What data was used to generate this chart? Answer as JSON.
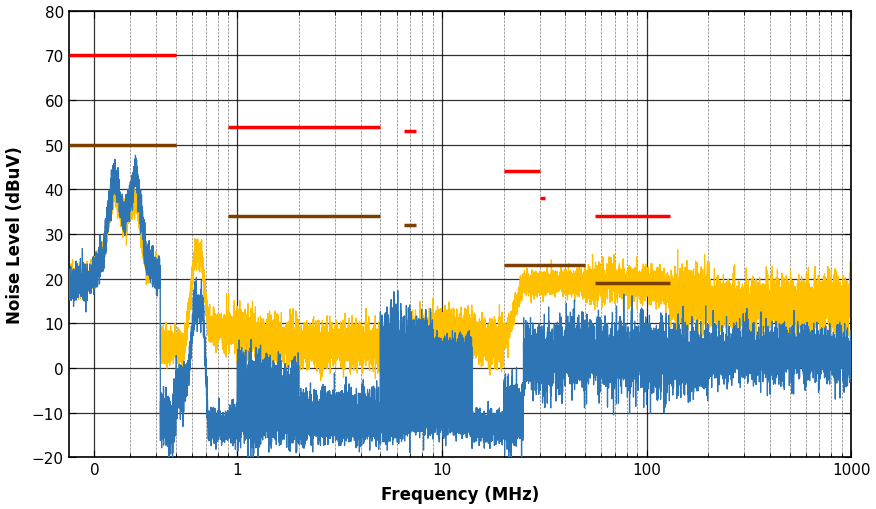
{
  "xlabel": "Frequency (MHz)",
  "ylabel": "Noise Level (dBuV)",
  "xlim": [
    0.15,
    1000
  ],
  "ylim": [
    -20,
    80
  ],
  "yticks": [
    -20,
    -10,
    0,
    10,
    20,
    30,
    40,
    50,
    60,
    70,
    80
  ],
  "blue_color": "#2E75B6",
  "yellow_color": "#FFC000",
  "red_color": "#FF0000",
  "brown_color": "#7B3F00",
  "background_color": "#FFFFFF",
  "limit_lines_red": [
    {
      "x_start": 0.15,
      "x_end": 0.5,
      "y": 70
    },
    {
      "x_start": 0.9,
      "x_end": 5.0,
      "y": 54
    },
    {
      "x_start": 6.5,
      "x_end": 7.5,
      "y": 53
    },
    {
      "x_start": 20,
      "x_end": 30,
      "y": 44
    },
    {
      "x_start": 30,
      "x_end": 32,
      "y": 38
    },
    {
      "x_start": 56,
      "x_end": 130,
      "y": 34
    }
  ],
  "limit_lines_brown": [
    {
      "x_start": 0.15,
      "x_end": 0.5,
      "y": 50
    },
    {
      "x_start": 0.9,
      "x_end": 5.0,
      "y": 34
    },
    {
      "x_start": 6.5,
      "x_end": 7.5,
      "y": 32
    },
    {
      "x_start": 20,
      "x_end": 50,
      "y": 23
    },
    {
      "x_start": 56,
      "x_end": 130,
      "y": 19
    }
  ],
  "major_xticks": [
    0.2,
    1,
    10,
    100,
    1000
  ],
  "major_xlabels": [
    "0",
    "1",
    "10",
    "100",
    "1000"
  ]
}
